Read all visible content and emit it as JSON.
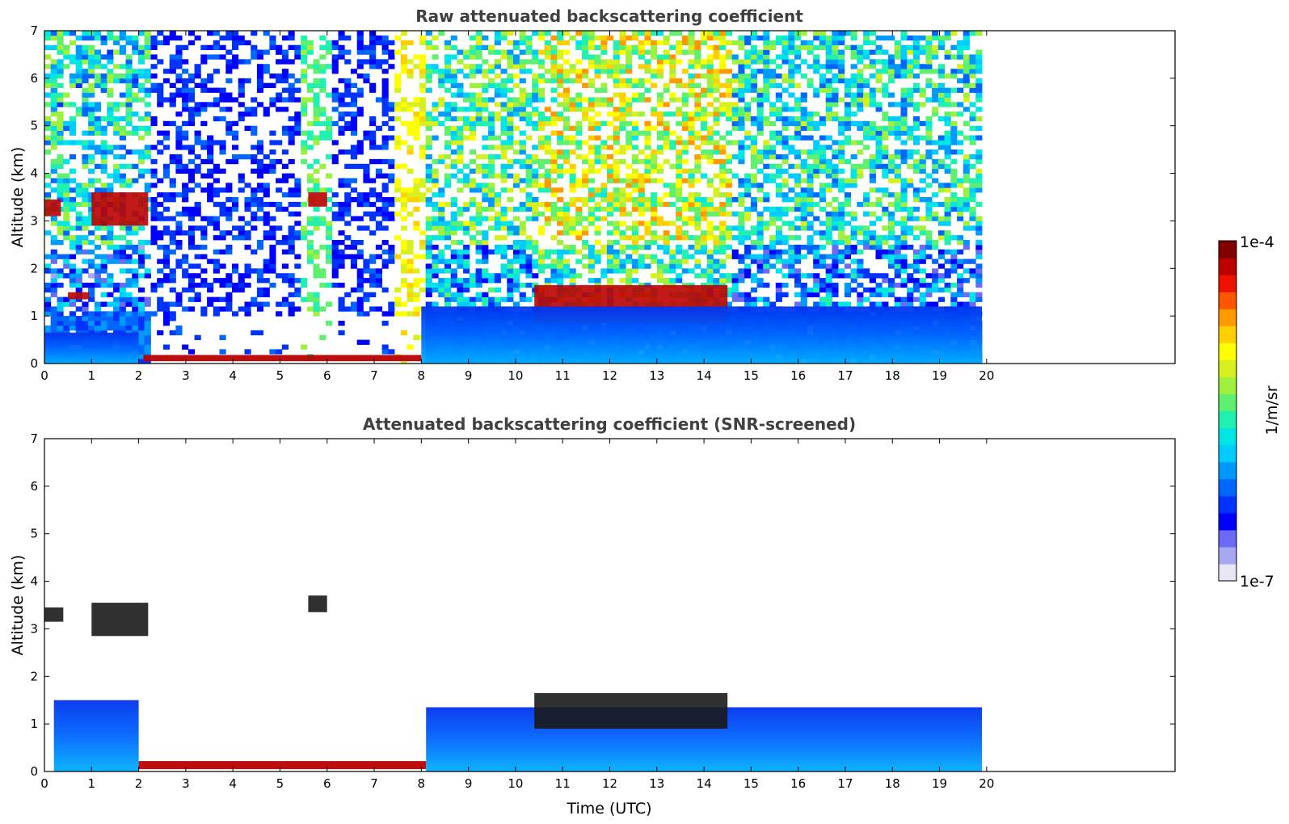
{
  "chart_data": [
    {
      "type": "heatmap",
      "title": "Raw attenuated backscattering coefficient",
      "xlabel": "",
      "ylabel": "Altitude (km)",
      "xlim": [
        0,
        24
      ],
      "ylim": [
        0,
        7
      ],
      "x_ticks": [
        "0",
        "1",
        "2",
        "3",
        "4",
        "5",
        "6",
        "7",
        "8",
        "9",
        "10",
        "11",
        "12",
        "13",
        "14",
        "15",
        "16",
        "17",
        "18",
        "19",
        "20"
      ],
      "y_ticks": [
        "0",
        "1",
        "2",
        "3",
        "4",
        "5",
        "6",
        "7"
      ],
      "data_extent_hours": 19.9,
      "features": [
        {
          "kind": "cloud",
          "x": [
            0.0,
            0.35
          ],
          "altitude": [
            3.1,
            3.45
          ],
          "level": "high"
        },
        {
          "kind": "cloud",
          "x": [
            1.0,
            2.2
          ],
          "altitude": [
            2.9,
            3.6
          ],
          "level": "high"
        },
        {
          "kind": "cloud",
          "x": [
            5.6,
            6.0
          ],
          "altitude": [
            3.3,
            3.6
          ],
          "level": "high"
        },
        {
          "kind": "cloud",
          "x": [
            0.5,
            0.95
          ],
          "altitude": [
            1.35,
            1.5
          ],
          "level": "high"
        },
        {
          "kind": "cloud",
          "x": [
            10.4,
            14.5
          ],
          "altitude": [
            0.85,
            1.65
          ],
          "level": "high"
        },
        {
          "kind": "surface-layer",
          "x": [
            2.1,
            8.0
          ],
          "altitude": [
            0.05,
            0.18
          ],
          "level": "high"
        },
        {
          "kind": "boundary-layer",
          "x": [
            8.0,
            19.9
          ],
          "altitude": [
            0.0,
            1.2
          ],
          "level": "medium"
        },
        {
          "kind": "boundary-layer",
          "x": [
            0.0,
            2.0
          ],
          "altitude": [
            0.0,
            0.65
          ],
          "level": "medium"
        }
      ]
    },
    {
      "type": "heatmap",
      "title": "Attenuated backscattering coefficient (SNR-screened)",
      "xlabel": "Time (UTC)",
      "ylabel": "Altitude (km)",
      "xlim": [
        0,
        24
      ],
      "ylim": [
        0,
        7
      ],
      "x_ticks": [
        "0",
        "1",
        "2",
        "3",
        "4",
        "5",
        "6",
        "7",
        "8",
        "9",
        "10",
        "11",
        "12",
        "13",
        "14",
        "15",
        "16",
        "17",
        "18",
        "19",
        "20"
      ],
      "y_ticks": [
        "0",
        "1",
        "2",
        "3",
        "4",
        "5",
        "6",
        "7"
      ],
      "data_extent_hours": 19.9,
      "features": [
        {
          "kind": "cloud",
          "x": [
            0.0,
            0.4
          ],
          "altitude": [
            3.15,
            3.45
          ],
          "level": "saturated"
        },
        {
          "kind": "cloud",
          "x": [
            1.0,
            2.2
          ],
          "altitude": [
            2.85,
            3.55
          ],
          "level": "saturated"
        },
        {
          "kind": "cloud",
          "x": [
            5.6,
            6.0
          ],
          "altitude": [
            3.35,
            3.7
          ],
          "level": "saturated"
        },
        {
          "kind": "boundary-layer",
          "x": [
            0.2,
            2.0
          ],
          "altitude": [
            0.0,
            1.5
          ],
          "level": "low"
        },
        {
          "kind": "surface-layer",
          "x": [
            2.0,
            8.1
          ],
          "altitude": [
            0.05,
            0.22
          ],
          "level": "high"
        },
        {
          "kind": "boundary-layer",
          "x": [
            8.1,
            19.9
          ],
          "altitude": [
            0.0,
            1.35
          ],
          "level": "low"
        },
        {
          "kind": "cloud",
          "x": [
            10.4,
            14.5
          ],
          "altitude": [
            0.9,
            1.65
          ],
          "level": "saturated"
        }
      ]
    }
  ],
  "colorbar": {
    "max_label": "1e-4",
    "min_label": "1e-7",
    "label": "1/m/sr",
    "colors": [
      "#e6e6f5",
      "#a8a8f0",
      "#6b6bf5",
      "#0000ff",
      "#0033ff",
      "#0066ff",
      "#0099ff",
      "#00ccff",
      "#00e6e6",
      "#20f0b0",
      "#60f070",
      "#a0f040",
      "#d8f020",
      "#ffff00",
      "#ffd000",
      "#ff9900",
      "#ff5500",
      "#ee1100",
      "#bb0000",
      "#800000"
    ]
  }
}
